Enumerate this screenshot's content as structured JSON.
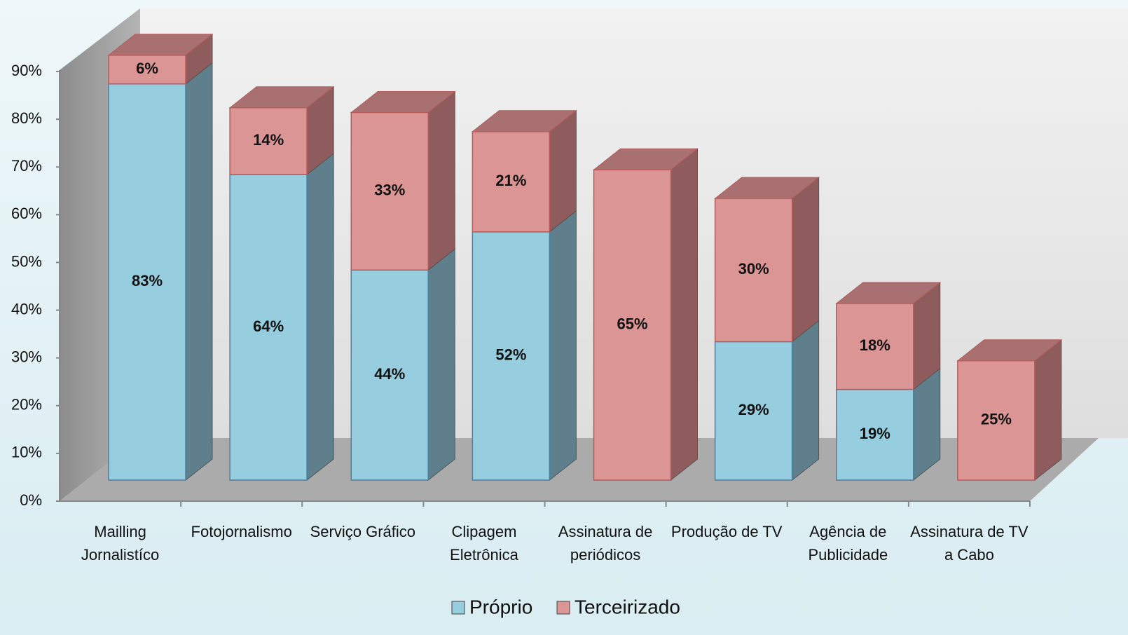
{
  "chart_data": {
    "type": "bar",
    "stacked": true,
    "categories": [
      "Mailling Jornalistíco",
      "Fotojornalismo",
      "Serviço Gráfico",
      "Clipagem Eletrônica",
      "Assinatura de periódicos",
      "Produção de TV",
      "Agência de Publicidade",
      "Assinatura de TV a Cabo"
    ],
    "series": [
      {
        "name": "Próprio",
        "color": "#96cddf",
        "values": [
          83,
          64,
          44,
          52,
          null,
          29,
          19,
          null
        ],
        "value_labels": [
          "83%",
          "64%",
          "44%",
          "52%",
          null,
          "29%",
          "19%",
          null
        ]
      },
      {
        "name": "Terceirizado",
        "color": "#dc9595",
        "values": [
          6,
          14,
          33,
          21,
          65,
          30,
          18,
          25
        ],
        "value_labels": [
          "6%",
          "14%",
          "33%",
          "21%",
          "65%",
          "30%",
          "18%",
          "25%"
        ]
      }
    ],
    "ylim": [
      0,
      90
    ],
    "yticks": [
      {
        "value": 0,
        "label": "0%"
      },
      {
        "value": 10,
        "label": "10%"
      },
      {
        "value": 20,
        "label": "20%"
      },
      {
        "value": 30,
        "label": "30%"
      },
      {
        "value": 40,
        "label": "40%"
      },
      {
        "value": 50,
        "label": "50%"
      },
      {
        "value": 60,
        "label": "60%"
      },
      {
        "value": 70,
        "label": "70%"
      },
      {
        "value": 80,
        "label": "80%"
      },
      {
        "value": 90,
        "label": "90%"
      }
    ],
    "legend": "bottom"
  }
}
